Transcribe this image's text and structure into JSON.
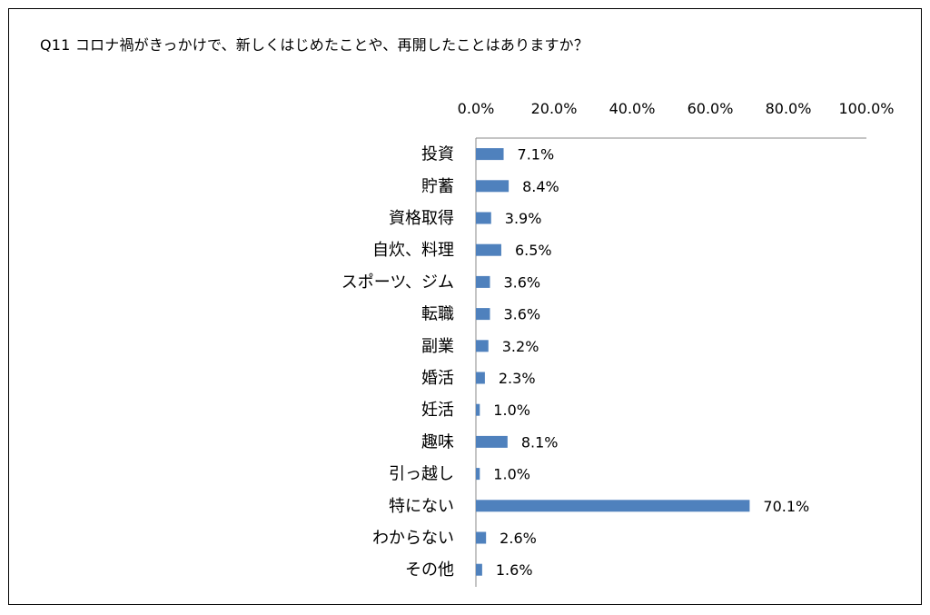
{
  "chart_data": {
    "type": "bar",
    "orientation": "horizontal",
    "title": "Q11 コロナ禍がきっかけで、新しくはじめたことや、再開したことはありますか？",
    "categories": [
      "投資",
      "貯蓄",
      "資格取得",
      "自炊、料理",
      "スポーツ、ジム",
      "転職",
      "副業",
      "婚活",
      "妊活",
      "趣味",
      "引っ越し",
      "特にない",
      "わからない",
      "その他"
    ],
    "values": [
      7.1,
      8.4,
      3.9,
      6.5,
      3.6,
      3.6,
      3.2,
      2.3,
      1.0,
      8.1,
      1.0,
      70.1,
      2.6,
      1.6
    ],
    "data_labels": [
      "7.1%",
      "8.4%",
      "3.9%",
      "6.5%",
      "3.6%",
      "3.6%",
      "3.2%",
      "2.3%",
      "1.0%",
      "8.1%",
      "1.0%",
      "70.1%",
      "2.6%",
      "1.6%"
    ],
    "tick_labels": [
      "0.0%",
      "20.0%",
      "40.0%",
      "60.0%",
      "80.0%",
      "100.0%"
    ],
    "xlim": [
      0,
      100
    ],
    "axis_position": "top",
    "grid": false,
    "legend": "none",
    "bar_color": "#4f81bd"
  }
}
